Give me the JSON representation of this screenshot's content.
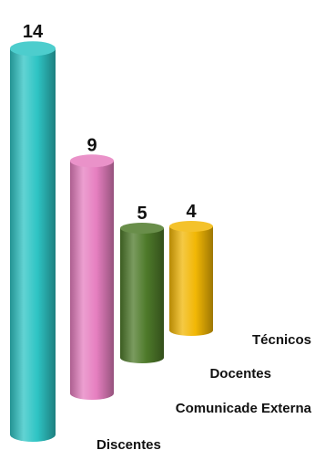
{
  "chart_data": {
    "type": "bar",
    "categories": [
      "Discentes",
      "Comunicade Externa",
      "Docentes",
      "Técnicos"
    ],
    "values": [
      14,
      5,
      9,
      4
    ],
    "display_order": [
      0,
      2,
      1,
      3
    ],
    "data_labels": [
      "14",
      "5",
      "9",
      "4"
    ],
    "colors": [
      "#2ec4c4",
      "#4e7a2a",
      "#e67fc0",
      "#f2b705"
    ],
    "title": "",
    "xlabel": "",
    "ylabel": "",
    "ylim": [
      0,
      14
    ],
    "grid": false,
    "legend": "none"
  }
}
